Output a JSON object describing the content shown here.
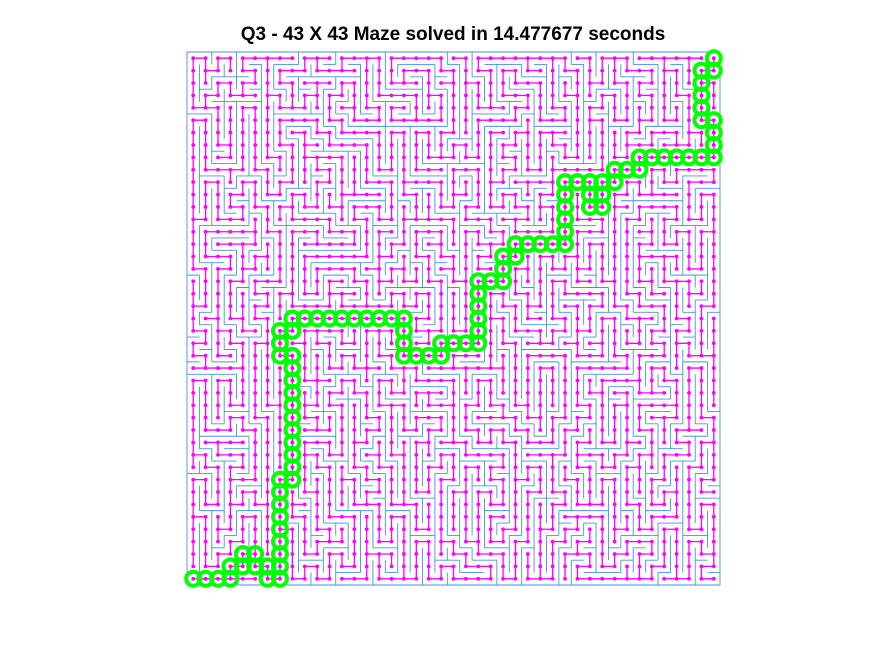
{
  "chart_data": {
    "type": "maze",
    "title": "Q3 - 43 X 43 Maze solved in 14.477677 seconds",
    "grid_size": [
      43,
      43
    ],
    "axes_visible": false,
    "xlim": [
      0,
      43
    ],
    "ylim": [
      0,
      43
    ],
    "colors": {
      "walls": "#4a90d9",
      "tree": "#ff00ff",
      "solution": "#00ff00"
    },
    "series": [
      {
        "type": "maze_walls",
        "style": "thin blue line",
        "seed": 20231
      },
      {
        "type": "spanning_tree",
        "style": "magenta line with dot markers"
      },
      {
        "type": "solution_path",
        "style": "large green circles",
        "start": [
          0,
          0
        ],
        "end": [
          42,
          42
        ],
        "cells": [
          [
            0,
            0
          ],
          [
            1,
            0
          ],
          [
            2,
            0
          ],
          [
            3,
            0
          ],
          [
            3,
            1
          ],
          [
            4,
            1
          ],
          [
            4,
            2
          ],
          [
            5,
            2
          ],
          [
            5,
            1
          ],
          [
            6,
            1
          ],
          [
            6,
            0
          ],
          [
            7,
            0
          ],
          [
            7,
            1
          ],
          [
            7,
            2
          ],
          [
            7,
            3
          ],
          [
            7,
            4
          ],
          [
            7,
            5
          ],
          [
            7,
            6
          ],
          [
            7,
            7
          ],
          [
            7,
            8
          ],
          [
            8,
            8
          ],
          [
            8,
            9
          ],
          [
            8,
            10
          ],
          [
            8,
            11
          ],
          [
            8,
            12
          ],
          [
            8,
            13
          ],
          [
            8,
            14
          ],
          [
            8,
            15
          ],
          [
            8,
            16
          ],
          [
            8,
            17
          ],
          [
            8,
            18
          ],
          [
            7,
            18
          ],
          [
            7,
            19
          ],
          [
            7,
            20
          ],
          [
            8,
            20
          ],
          [
            8,
            21
          ],
          [
            9,
            21
          ],
          [
            10,
            21
          ],
          [
            11,
            21
          ],
          [
            12,
            21
          ],
          [
            13,
            21
          ],
          [
            14,
            21
          ],
          [
            15,
            21
          ],
          [
            16,
            21
          ],
          [
            17,
            21
          ],
          [
            17,
            20
          ],
          [
            17,
            19
          ],
          [
            17,
            18
          ],
          [
            18,
            18
          ],
          [
            19,
            18
          ],
          [
            20,
            18
          ],
          [
            20,
            19
          ],
          [
            21,
            19
          ],
          [
            22,
            19
          ],
          [
            23,
            19
          ],
          [
            23,
            20
          ],
          [
            23,
            21
          ],
          [
            23,
            22
          ],
          [
            23,
            23
          ],
          [
            23,
            24
          ],
          [
            24,
            24
          ],
          [
            25,
            24
          ],
          [
            25,
            25
          ],
          [
            25,
            26
          ],
          [
            26,
            26
          ],
          [
            26,
            27
          ],
          [
            27,
            27
          ],
          [
            28,
            27
          ],
          [
            29,
            27
          ],
          [
            30,
            27
          ],
          [
            30,
            28
          ],
          [
            30,
            29
          ],
          [
            30,
            30
          ],
          [
            30,
            31
          ],
          [
            30,
            32
          ],
          [
            31,
            32
          ],
          [
            32,
            32
          ],
          [
            32,
            31
          ],
          [
            32,
            30
          ],
          [
            33,
            30
          ],
          [
            33,
            31
          ],
          [
            33,
            32
          ],
          [
            34,
            32
          ],
          [
            34,
            33
          ],
          [
            35,
            33
          ],
          [
            36,
            33
          ],
          [
            36,
            34
          ],
          [
            37,
            34
          ],
          [
            38,
            34
          ],
          [
            39,
            34
          ],
          [
            40,
            34
          ],
          [
            41,
            34
          ],
          [
            42,
            34
          ],
          [
            42,
            35
          ],
          [
            42,
            36
          ],
          [
            42,
            37
          ],
          [
            41,
            37
          ],
          [
            41,
            38
          ],
          [
            41,
            39
          ],
          [
            41,
            40
          ],
          [
            41,
            41
          ],
          [
            42,
            41
          ],
          [
            42,
            42
          ]
        ]
      }
    ]
  }
}
